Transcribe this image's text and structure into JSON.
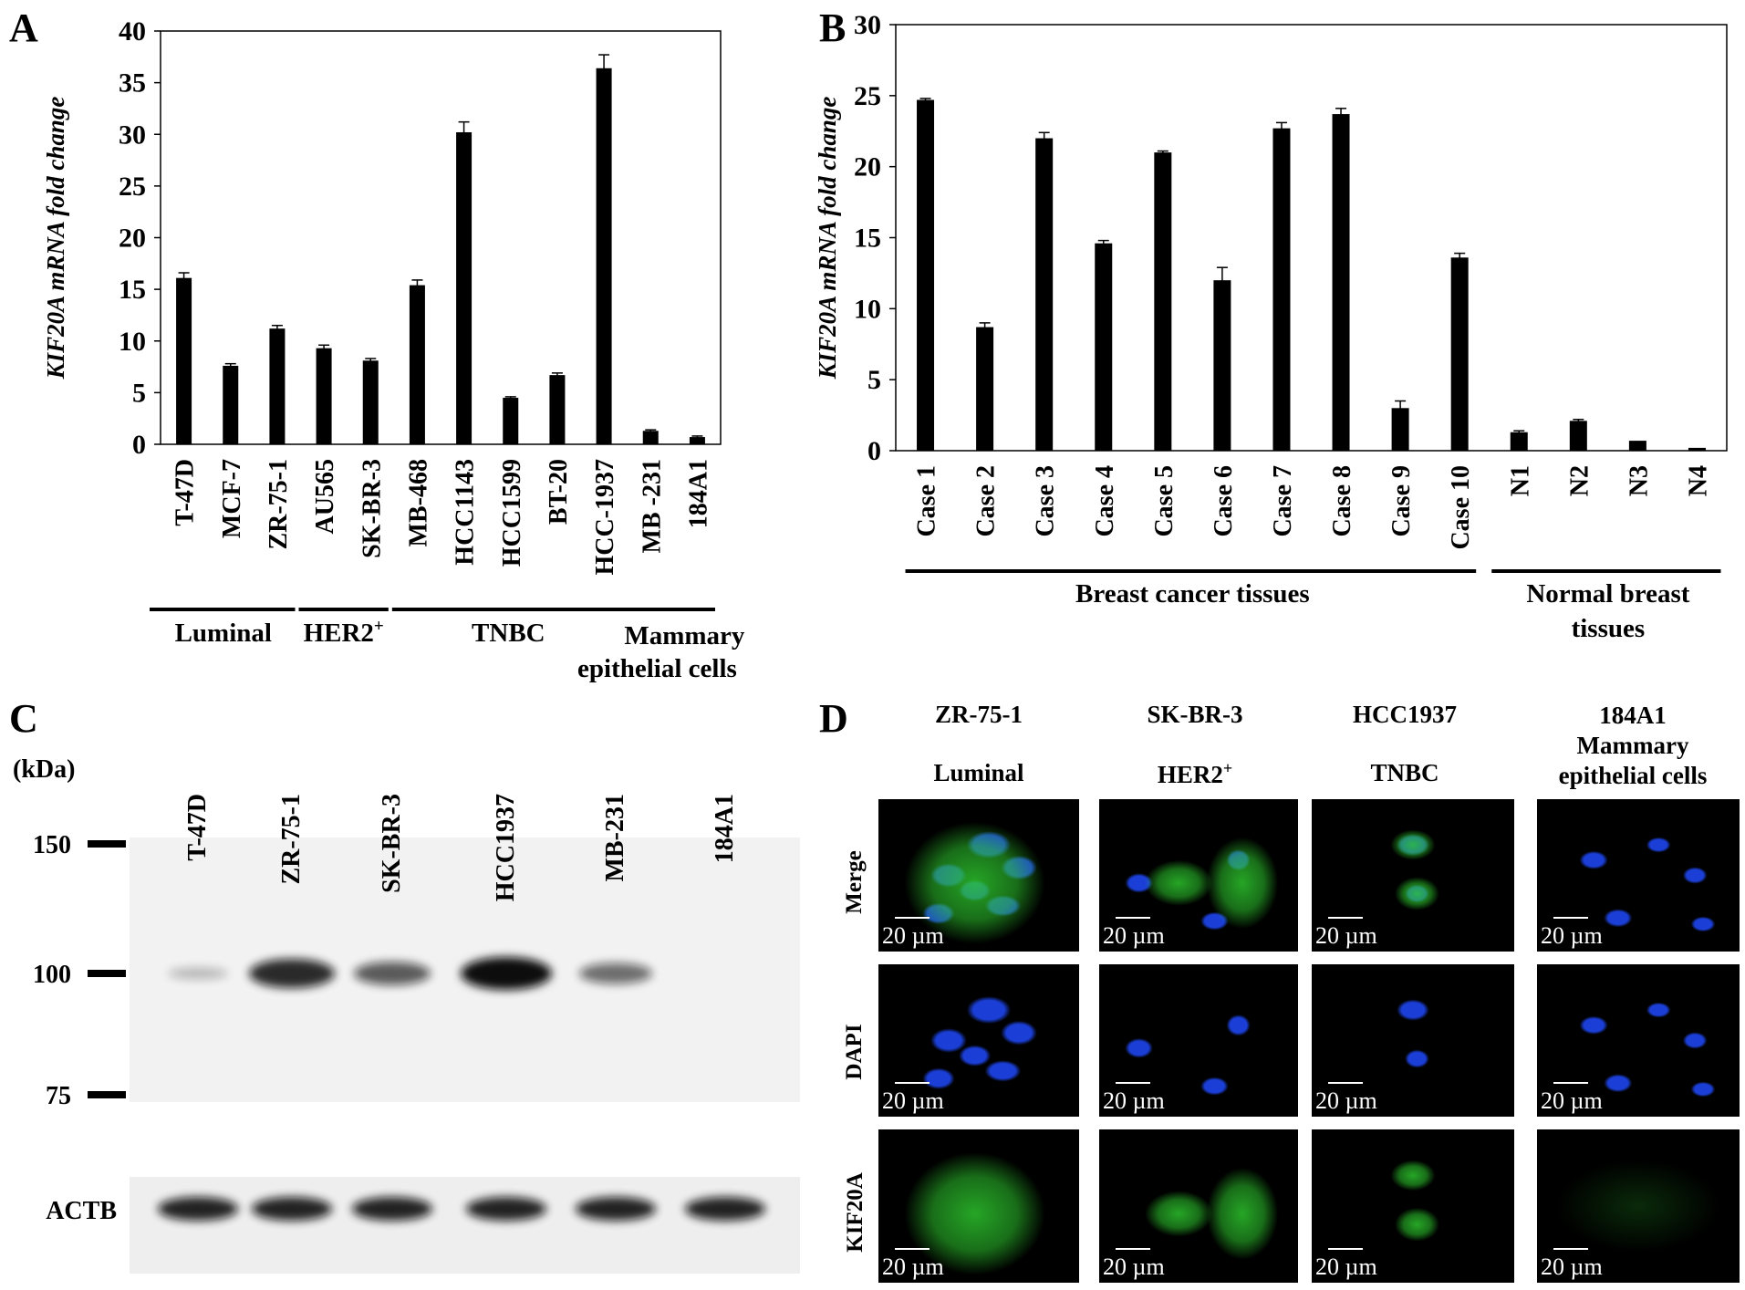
{
  "panels": {
    "A": {
      "label": "A",
      "chart_data": {
        "type": "bar",
        "ylabel": "KIF20A mRNA fold change",
        "ylim": [
          0,
          40
        ],
        "yticks": [
          0,
          5,
          10,
          15,
          20,
          25,
          30,
          35,
          40
        ],
        "categories": [
          "T-47D",
          "MCF-7",
          "ZR-75-1",
          "AU565",
          "SK-BR-3",
          "MB-468",
          "HCC1143",
          "HCC1599",
          "BT-20",
          "HCC-1937",
          "MB -231",
          "184A1"
        ],
        "values": [
          16.1,
          7.6,
          11.2,
          9.3,
          8.1,
          15.4,
          30.2,
          4.5,
          6.7,
          36.4,
          1.3,
          0.7
        ],
        "errors": [
          0.5,
          0.2,
          0.3,
          0.3,
          0.2,
          0.5,
          1.0,
          0.1,
          0.2,
          1.3,
          0.1,
          0.1
        ],
        "groups": [
          {
            "label": "Luminal",
            "sup": "",
            "from": 0,
            "to": 2
          },
          {
            "label": "HER2",
            "sup": "+",
            "from": 3,
            "to": 4
          },
          {
            "label": "TNBC",
            "sup": "",
            "from": 5,
            "to": 10
          },
          {
            "label": "Mammary epithelial cells",
            "sup": "",
            "from": 11,
            "to": 11
          }
        ],
        "group_label_lines": {
          "mammary_1": "Mammary",
          "mammary_2": "epithelial cells"
        }
      }
    },
    "B": {
      "label": "B",
      "chart_data": {
        "type": "bar",
        "ylabel": "KIF20A mRNA fold change",
        "ylim": [
          0,
          30
        ],
        "yticks": [
          0,
          5,
          10,
          15,
          20,
          25,
          30
        ],
        "categories": [
          "Case 1",
          "Case 2",
          "Case 3",
          "Case 4",
          "Case 5",
          "Case 6",
          "Case 7",
          "Case 8",
          "Case 9",
          "Case 10",
          "N1",
          "N2",
          "N3",
          "N4"
        ],
        "values": [
          24.7,
          8.7,
          22.0,
          14.6,
          21.0,
          12.0,
          22.7,
          23.7,
          3.0,
          13.6,
          1.3,
          2.1,
          0.7,
          0.2
        ],
        "errors": [
          0.1,
          0.3,
          0.4,
          0.2,
          0.1,
          0.9,
          0.4,
          0.4,
          0.5,
          0.3,
          0.1,
          0.1,
          0.05,
          0.05
        ],
        "groups": [
          {
            "label": "Breast cancer tissues",
            "from": 0,
            "to": 9
          },
          {
            "label": "Normal breast tissues",
            "from": 10,
            "to": 13
          }
        ],
        "group_label_lines": {
          "normal_1": "Normal breast",
          "normal_2": "tissues"
        }
      }
    },
    "C": {
      "label": "C",
      "kda_label": "(kDa)",
      "lanes": [
        "T-47D",
        "ZR-75-1",
        "SK-BR-3",
        "HCC1937",
        "MB-231",
        "184A1"
      ],
      "markers": [
        "150",
        "100",
        "75"
      ],
      "band_intensity": [
        0.12,
        0.85,
        0.6,
        1.0,
        0.5,
        0.0
      ],
      "loading_label": "ACTB",
      "band_color": "#111111"
    },
    "D": {
      "label": "D",
      "columns": [
        {
          "name": "ZR-75-1",
          "subtype": "Luminal",
          "sup": ""
        },
        {
          "name": "SK-BR-3",
          "subtype": "HER2",
          "sup": "+"
        },
        {
          "name": "HCC1937",
          "subtype": "TNBC",
          "sup": ""
        },
        {
          "name": "184A1",
          "subtype": "Mammary epithelial cells",
          "sup": ""
        }
      ],
      "col4_lines": {
        "line1": "184A1",
        "line2": "Mammary",
        "line3": "epithelial cells"
      },
      "rows": [
        "Merge",
        "DAPI",
        "KIF20A"
      ],
      "scale_label": "20 µm",
      "colors": {
        "dapi": "#1b3fd6",
        "kif20a": "#2fcf2f",
        "background": "#000000"
      }
    }
  }
}
